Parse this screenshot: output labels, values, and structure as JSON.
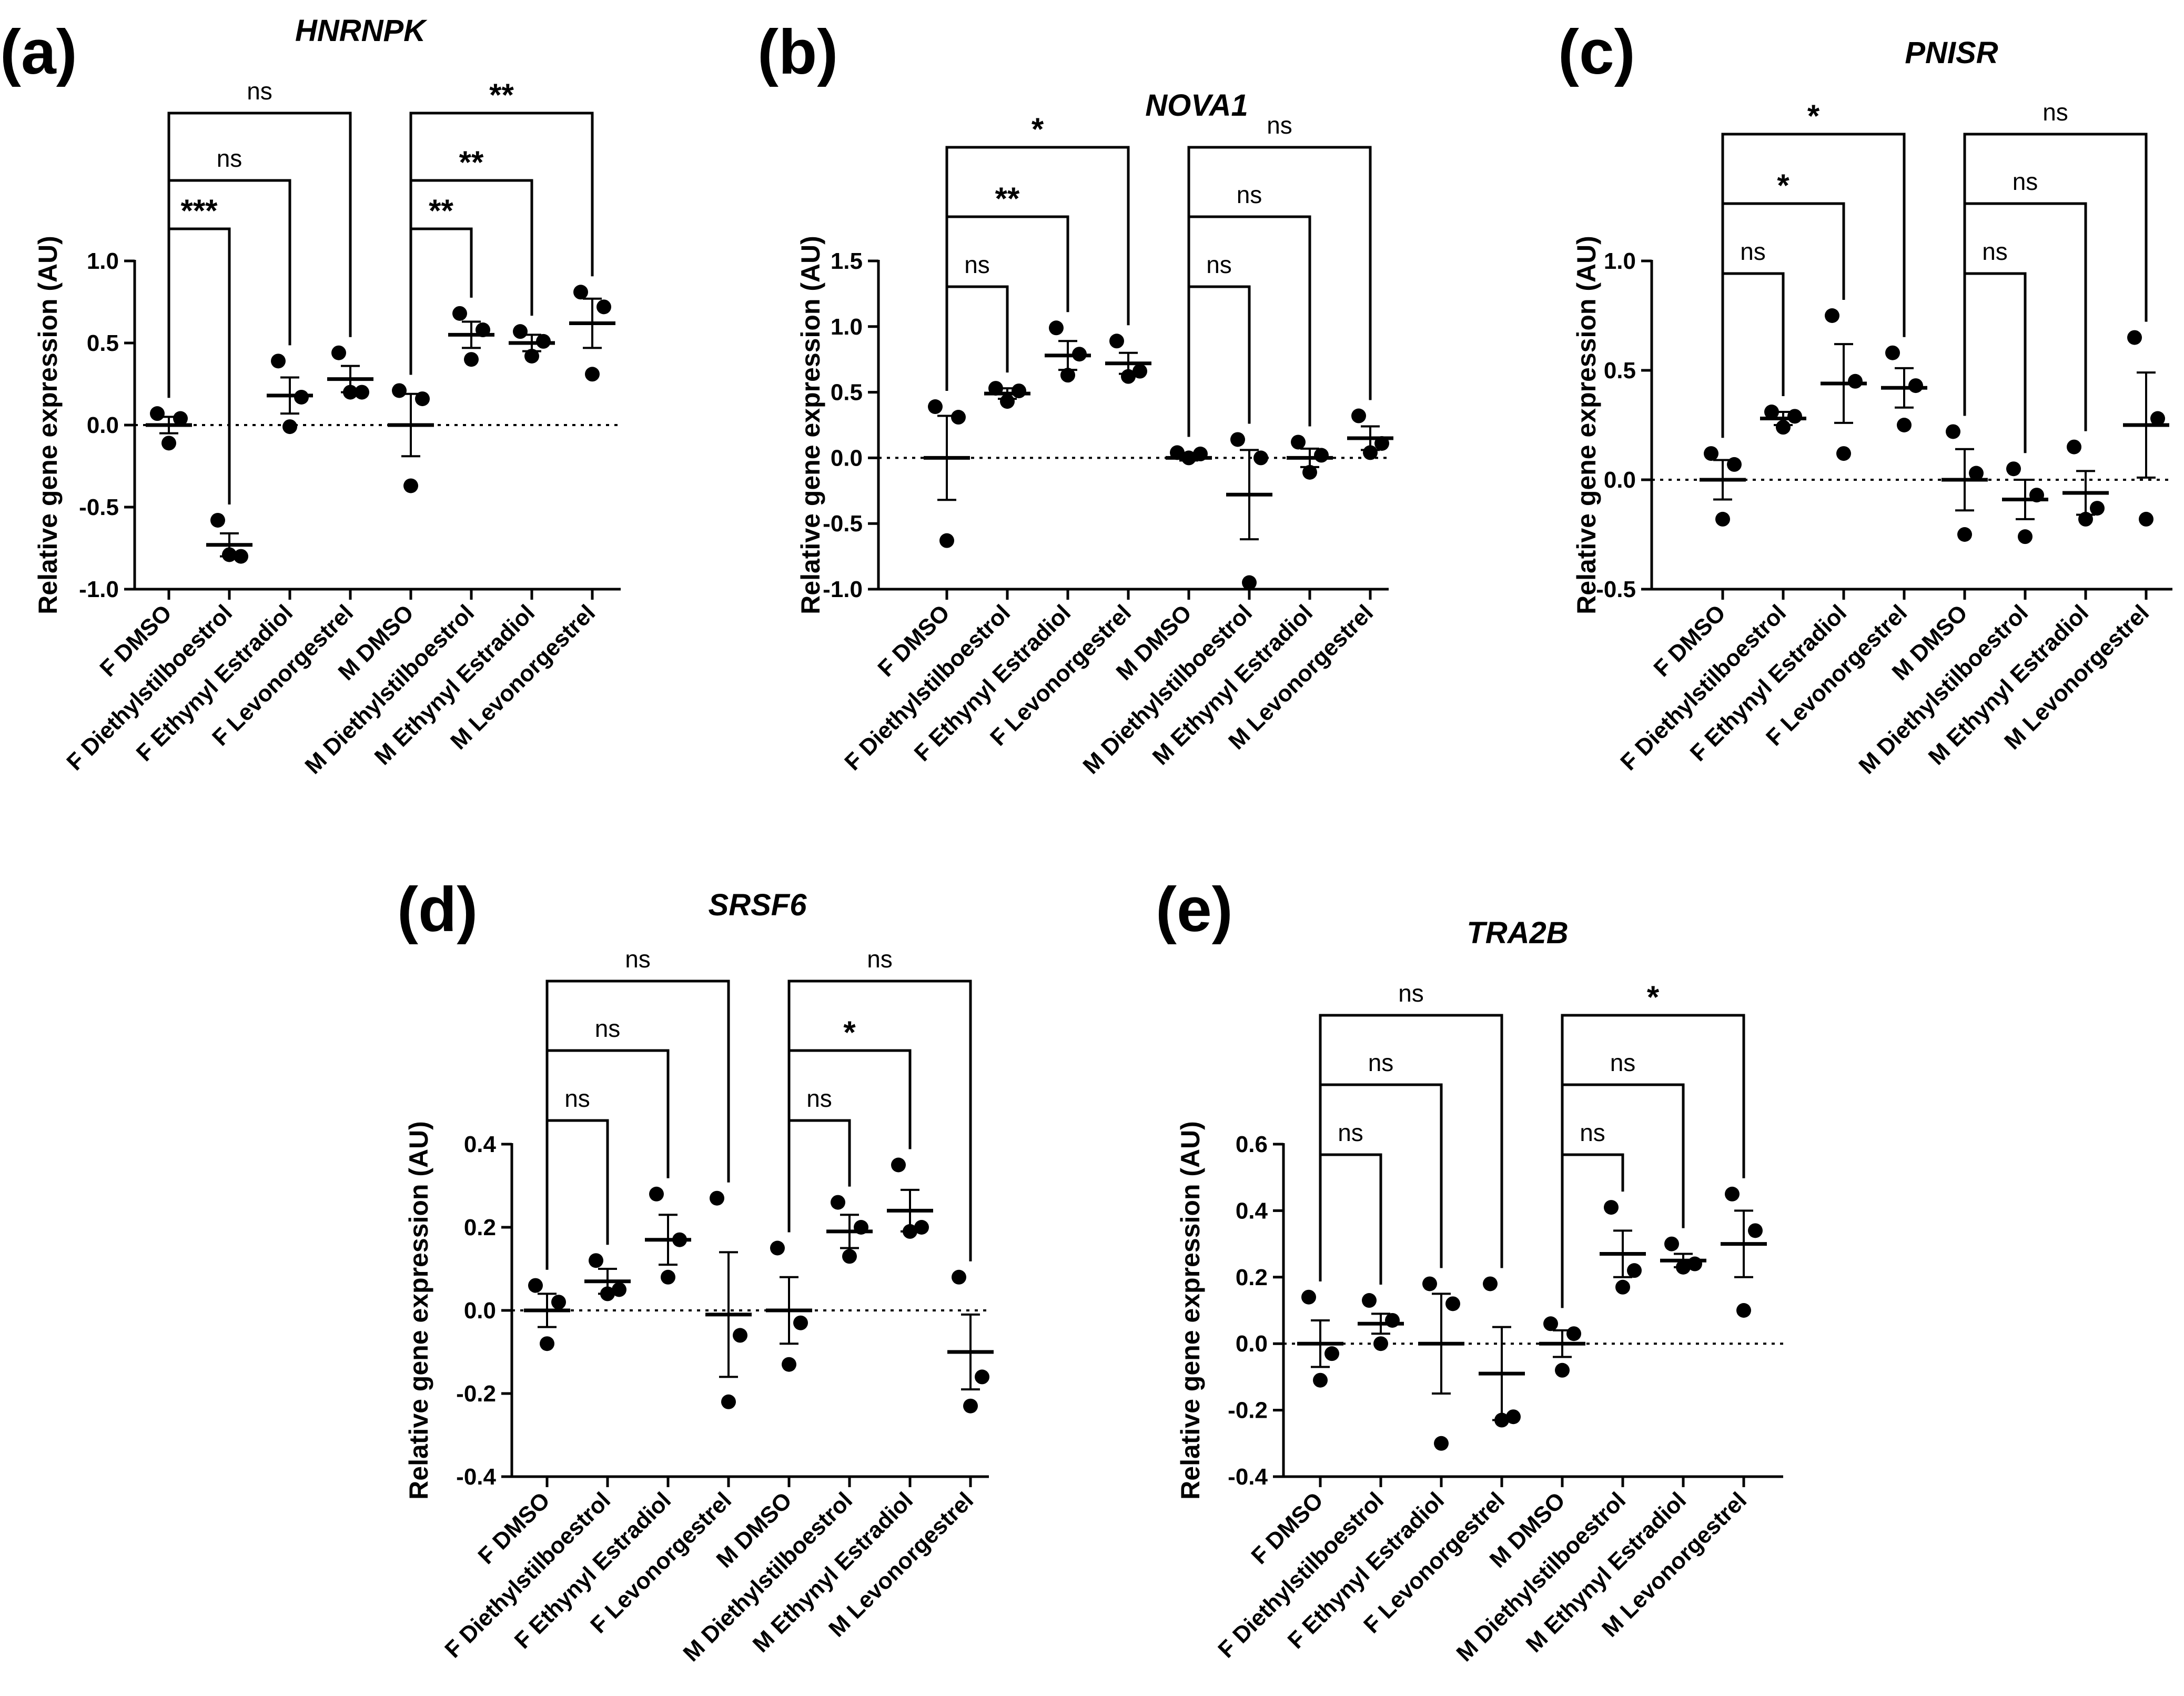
{
  "figure": {
    "ylabel": "Relative gene expression (AU)"
  },
  "chart_data": [
    {
      "panel": "(a)",
      "title": "HNRNPK",
      "type": "scatter",
      "ylabel": "Relative gene expression (AU)",
      "ylim": [
        -1.0,
        1.0
      ],
      "yticks": [
        -1.0,
        -0.5,
        0.0,
        0.5,
        1.0
      ],
      "ytick_labels": [
        "-1.0",
        "-0.5",
        "0.0",
        "0.5",
        "1.0"
      ],
      "categories": [
        "F DMSO",
        "F Diethylstilboestrol",
        "F Ethynyl Estradiol",
        "F Levonorgestrel",
        "M DMSO",
        "M Diethylstilboestrol",
        "M Ethynyl Estradiol",
        "M Levonorgestrel"
      ],
      "points": [
        [
          0.07,
          -0.11,
          0.04
        ],
        [
          -0.58,
          -0.79,
          -0.8
        ],
        [
          0.39,
          -0.01,
          0.17
        ],
        [
          0.44,
          0.2,
          0.2
        ],
        [
          0.21,
          -0.37,
          0.16
        ],
        [
          0.68,
          0.4,
          0.58
        ],
        [
          0.57,
          0.42,
          0.51
        ],
        [
          0.81,
          0.31,
          0.72
        ]
      ],
      "mean": [
        0.0,
        -0.73,
        0.18,
        0.28,
        0.0,
        0.55,
        0.5,
        0.62
      ],
      "sem": [
        0.05,
        0.07,
        0.11,
        0.08,
        0.19,
        0.08,
        0.05,
        0.15
      ],
      "comparisons": [
        {
          "from": 0,
          "to": 1,
          "label": "***"
        },
        {
          "from": 0,
          "to": 2,
          "label": "ns"
        },
        {
          "from": 0,
          "to": 3,
          "label": "ns"
        },
        {
          "from": 4,
          "to": 5,
          "label": "**"
        },
        {
          "from": 4,
          "to": 6,
          "label": "**"
        },
        {
          "from": 4,
          "to": 7,
          "label": "**"
        }
      ]
    },
    {
      "panel": "(b)",
      "title": "NOVA1",
      "type": "scatter",
      "ylabel": "Relative gene expression (AU)",
      "ylim": [
        -1.0,
        1.5
      ],
      "yticks": [
        -1.0,
        -0.5,
        0.0,
        0.5,
        1.0,
        1.5
      ],
      "ytick_labels": [
        "-1.0",
        "-0.5",
        "0.0",
        "0.5",
        "1.0",
        "1.5"
      ],
      "categories": [
        "F DMSO",
        "F Diethylstilboestrol",
        "F Ethynyl Estradiol",
        "F Levonorgestrel",
        "M DMSO",
        "M Diethylstilboestrol",
        "M Ethynyl Estradiol",
        "M Levonorgestrel"
      ],
      "points": [
        [
          0.39,
          -0.63,
          0.31
        ],
        [
          0.53,
          0.43,
          0.51
        ],
        [
          0.99,
          0.63,
          0.79
        ],
        [
          0.89,
          0.62,
          0.66
        ],
        [
          0.04,
          0.0,
          0.03
        ],
        [
          0.14,
          -0.95,
          0.0
        ],
        [
          0.12,
          -0.11,
          0.02
        ],
        [
          0.32,
          0.04,
          0.11
        ]
      ],
      "mean": [
        0.0,
        0.49,
        0.78,
        0.72,
        0.0,
        -0.28,
        0.0,
        0.15
      ],
      "sem": [
        0.32,
        0.04,
        0.11,
        0.08,
        0.02,
        0.34,
        0.07,
        0.09
      ],
      "comparisons": [
        {
          "from": 0,
          "to": 1,
          "label": "ns"
        },
        {
          "from": 0,
          "to": 2,
          "label": "**"
        },
        {
          "from": 0,
          "to": 3,
          "label": "*"
        },
        {
          "from": 4,
          "to": 5,
          "label": "ns"
        },
        {
          "from": 4,
          "to": 6,
          "label": "ns"
        },
        {
          "from": 4,
          "to": 7,
          "label": "ns"
        }
      ]
    },
    {
      "panel": "(c)",
      "title": "PNISR",
      "type": "scatter",
      "ylabel": "Relative gene expression (AU)",
      "ylim": [
        -0.5,
        1.0
      ],
      "yticks": [
        -0.5,
        0.0,
        0.5,
        1.0
      ],
      "ytick_labels": [
        "-0.5",
        "0.0",
        "0.5",
        "1.0"
      ],
      "categories": [
        "F DMSO",
        "F Diethylstilboestrol",
        "F Ethynyl Estradiol",
        "F Levonorgestrel",
        "M DMSO",
        "M Diethylstilboestrol",
        "M Ethynyl Estradiol",
        "M Levonorgestrel"
      ],
      "points": [
        [
          0.12,
          -0.18,
          0.07
        ],
        [
          0.31,
          0.24,
          0.29
        ],
        [
          0.75,
          0.12,
          0.45
        ],
        [
          0.58,
          0.25,
          0.43
        ],
        [
          0.22,
          -0.25,
          0.03
        ],
        [
          0.05,
          -0.26,
          -0.07
        ],
        [
          0.15,
          -0.18,
          -0.13
        ],
        [
          0.65,
          -0.18,
          0.28
        ]
      ],
      "mean": [
        0.0,
        0.28,
        0.44,
        0.42,
        0.0,
        -0.09,
        -0.06,
        0.25
      ],
      "sem": [
        0.09,
        0.03,
        0.18,
        0.09,
        0.14,
        0.09,
        0.1,
        0.24
      ],
      "comparisons": [
        {
          "from": 0,
          "to": 1,
          "label": "ns"
        },
        {
          "from": 0,
          "to": 2,
          "label": "*"
        },
        {
          "from": 0,
          "to": 3,
          "label": "*"
        },
        {
          "from": 4,
          "to": 5,
          "label": "ns"
        },
        {
          "from": 4,
          "to": 6,
          "label": "ns"
        },
        {
          "from": 4,
          "to": 7,
          "label": "ns"
        }
      ]
    },
    {
      "panel": "(d)",
      "title": "SRSF6",
      "type": "scatter",
      "ylabel": "Relative gene expression (AU)",
      "ylim": [
        -0.4,
        0.4
      ],
      "yticks": [
        -0.4,
        -0.2,
        0.0,
        0.2,
        0.4
      ],
      "ytick_labels": [
        "-0.4",
        "-0.2",
        "0.0",
        "0.2",
        "0.4"
      ],
      "categories": [
        "F DMSO",
        "F Diethylstilboestrol",
        "F Ethynyl Estradiol",
        "F Levonorgestrel",
        "M DMSO",
        "M Diethylstilboestrol",
        "M Ethynyl Estradiol",
        "M Levonorgestrel"
      ],
      "points": [
        [
          0.06,
          -0.08,
          0.02
        ],
        [
          0.12,
          0.04,
          0.05
        ],
        [
          0.28,
          0.08,
          0.17
        ],
        [
          0.27,
          -0.22,
          -0.06
        ],
        [
          0.15,
          -0.13,
          -0.03
        ],
        [
          0.26,
          0.13,
          0.2
        ],
        [
          0.35,
          0.19,
          0.2
        ],
        [
          0.08,
          -0.23,
          -0.16
        ]
      ],
      "mean": [
        0.0,
        0.07,
        0.17,
        -0.01,
        0.0,
        0.19,
        0.24,
        -0.1
      ],
      "sem": [
        0.04,
        0.03,
        0.06,
        0.15,
        0.08,
        0.04,
        0.05,
        0.09
      ],
      "comparisons": [
        {
          "from": 0,
          "to": 1,
          "label": "ns"
        },
        {
          "from": 0,
          "to": 2,
          "label": "ns"
        },
        {
          "from": 0,
          "to": 3,
          "label": "ns"
        },
        {
          "from": 4,
          "to": 5,
          "label": "ns"
        },
        {
          "from": 4,
          "to": 6,
          "label": "*"
        },
        {
          "from": 4,
          "to": 7,
          "label": "ns"
        }
      ]
    },
    {
      "panel": "(e)",
      "title": "TRA2B",
      "type": "scatter",
      "ylabel": "Relative gene expression (AU)",
      "ylim": [
        -0.4,
        0.6
      ],
      "yticks": [
        -0.4,
        -0.2,
        0.0,
        0.2,
        0.4,
        0.6
      ],
      "ytick_labels": [
        "-0.4",
        "-0.2",
        "0.0",
        "0.2",
        "0.4",
        "0.6"
      ],
      "categories": [
        "F DMSO",
        "F Diethylstilboestrol",
        "F Ethynyl Estradiol",
        "F Levonorgestrel",
        "M DMSO",
        "M Diethylstilboestrol",
        "M Ethynyl Estradiol",
        "M Levonorgestrel"
      ],
      "points": [
        [
          0.14,
          -0.11,
          -0.03
        ],
        [
          0.13,
          0.0,
          0.07
        ],
        [
          0.18,
          -0.3,
          0.12
        ],
        [
          0.18,
          -0.23,
          -0.22
        ],
        [
          0.06,
          -0.08,
          0.03
        ],
        [
          0.41,
          0.17,
          0.22
        ],
        [
          0.3,
          0.23,
          0.24
        ],
        [
          0.45,
          0.1,
          0.34
        ]
      ],
      "mean": [
        0.0,
        0.06,
        0.0,
        -0.09,
        0.0,
        0.27,
        0.25,
        0.3
      ],
      "sem": [
        0.07,
        0.03,
        0.15,
        0.14,
        0.04,
        0.07,
        0.02,
        0.1
      ],
      "comparisons": [
        {
          "from": 0,
          "to": 1,
          "label": "ns"
        },
        {
          "from": 0,
          "to": 2,
          "label": "ns"
        },
        {
          "from": 0,
          "to": 3,
          "label": "ns"
        },
        {
          "from": 4,
          "to": 5,
          "label": "ns"
        },
        {
          "from": 4,
          "to": 6,
          "label": "ns"
        },
        {
          "from": 4,
          "to": 7,
          "label": "*"
        }
      ]
    }
  ]
}
